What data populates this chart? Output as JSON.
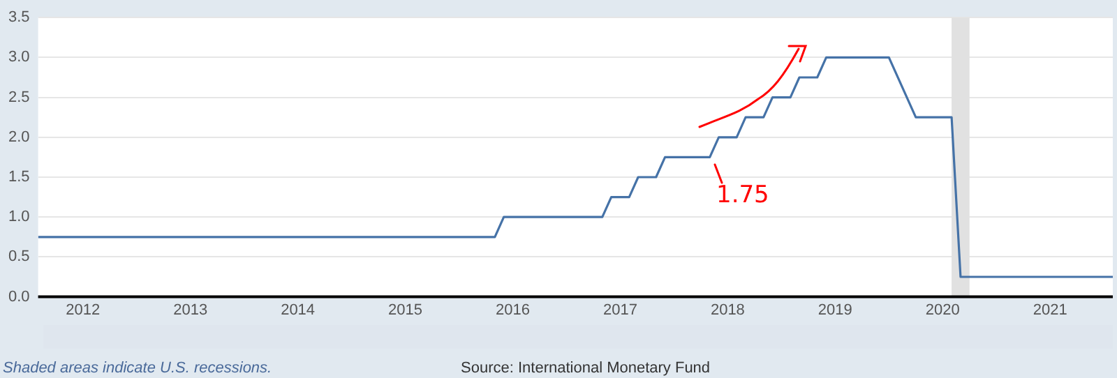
{
  "chart_data": {
    "type": "line",
    "x": [
      "2011-08",
      "2015-11",
      "2015-12",
      "2016-11",
      "2016-12",
      "2017-02",
      "2017-03",
      "2017-05",
      "2017-06",
      "2017-11",
      "2017-12",
      "2018-02",
      "2018-03",
      "2018-05",
      "2018-06",
      "2018-08",
      "2018-09",
      "2018-11",
      "2018-12",
      "2019-07",
      "2019-10",
      "2020-02",
      "2020-03",
      "2021-08"
    ],
    "series": [
      {
        "color": "#4572a7",
        "values": [
          0.75,
          0.75,
          1.0,
          1.0,
          1.25,
          1.25,
          1.5,
          1.5,
          1.75,
          1.75,
          2.0,
          2.0,
          2.25,
          2.25,
          2.5,
          2.5,
          2.75,
          2.75,
          3.0,
          3.0,
          2.25,
          2.25,
          0.25,
          0.25
        ]
      }
    ],
    "xlim": [
      "2011-08",
      "2021-08"
    ],
    "xticks": [
      {
        "value": "2012",
        "label": "2012"
      },
      {
        "value": "2013",
        "label": "2013"
      },
      {
        "value": "2014",
        "label": "2014"
      },
      {
        "value": "2015",
        "label": "2015"
      },
      {
        "value": "2016",
        "label": "2016"
      },
      {
        "value": "2017",
        "label": "2017"
      },
      {
        "value": "2018",
        "label": "2018"
      },
      {
        "value": "2019",
        "label": "2019"
      },
      {
        "value": "2020",
        "label": "2020"
      },
      {
        "value": "2021",
        "label": "2021"
      }
    ],
    "ylim": [
      0,
      3.5
    ],
    "yticks": [
      {
        "value": 0,
        "label": "0.0"
      },
      {
        "value": 0.5,
        "label": "0.5"
      },
      {
        "value": 1,
        "label": "1.0"
      },
      {
        "value": 1.5,
        "label": "1.5"
      },
      {
        "value": 2,
        "label": "2.0"
      },
      {
        "value": 2.5,
        "label": "2.5"
      },
      {
        "value": 3,
        "label": "3.0"
      },
      {
        "value": 3.5,
        "label": "3.5"
      }
    ],
    "grid": "y",
    "legend": false,
    "marker": "none",
    "line_style": "solid",
    "bands": [
      {
        "axis": "x",
        "from": "2020-02",
        "to": "2020-04",
        "color": "#e1e1e1"
      }
    ],
    "annotations": [
      "1.75",
      "Shaded areas indicate U.S. recessions.",
      "Source: International Monetary Fund"
    ]
  }
}
